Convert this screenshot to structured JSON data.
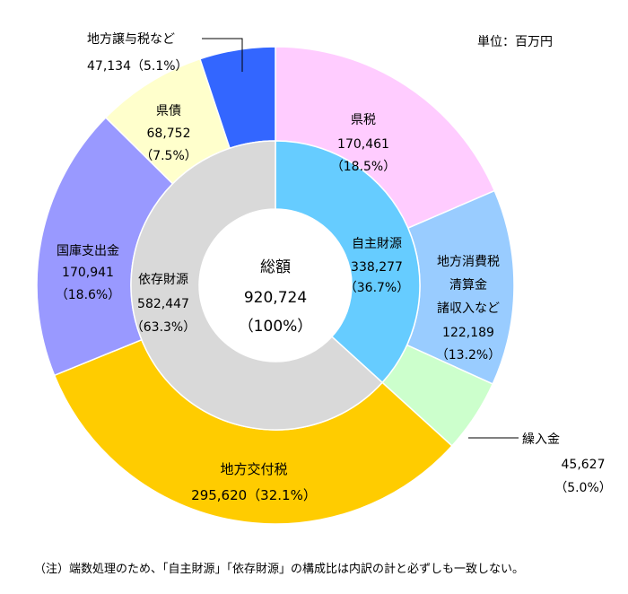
{
  "unit_label": "単位：百万円",
  "footnote": "（注）端数処理のため、「自主財源」「依存財源」の構成比は内訳の計と必ずしも一致しない。",
  "chart_data": {
    "type": "pie",
    "center": {
      "title": "総額",
      "value": "920,724",
      "percent": "（100%）"
    },
    "inner": [
      {
        "name": "自主財源",
        "value": 338277,
        "value_label": "338,277",
        "percent_label": "（36.7%）",
        "color": "#66ccff"
      },
      {
        "name": "依存財源",
        "value": 582447,
        "value_label": "582,447",
        "percent_label": "（63.3%）",
        "color": "#d9d9d9"
      }
    ],
    "outer": [
      {
        "name": "県税",
        "value": 170461,
        "value_label": "170,461",
        "percent_label": "（18.5%）",
        "color": "#ffccff"
      },
      {
        "name_lines": [
          "地方消費税",
          "清算金",
          "諸収入など"
        ],
        "value": 122189,
        "value_label": "122,189",
        "percent_label": "（13.2%）",
        "color": "#99ccff"
      },
      {
        "name": "繰入金",
        "value": 45627,
        "value_label": "45,627",
        "percent_label": "（5.0%）",
        "color": "#ccffcc"
      },
      {
        "name": "地方交付税",
        "value": 295620,
        "value_label": "295,620（32.1%）",
        "percent_label": "",
        "color": "#ffcc00"
      },
      {
        "name": "国庫支出金",
        "value": 170941,
        "value_label": "170,941",
        "percent_label": "（18.6%）",
        "color": "#9999ff"
      },
      {
        "name": "県債",
        "value": 68752,
        "value_label": "68,752",
        "percent_label": "（7.5%）",
        "color": "#ffffcc"
      },
      {
        "name": "地方譲与税など",
        "value": 47134,
        "value_label": "47,134（5.1%）",
        "percent_label": "",
        "color": "#3366ff"
      }
    ]
  }
}
